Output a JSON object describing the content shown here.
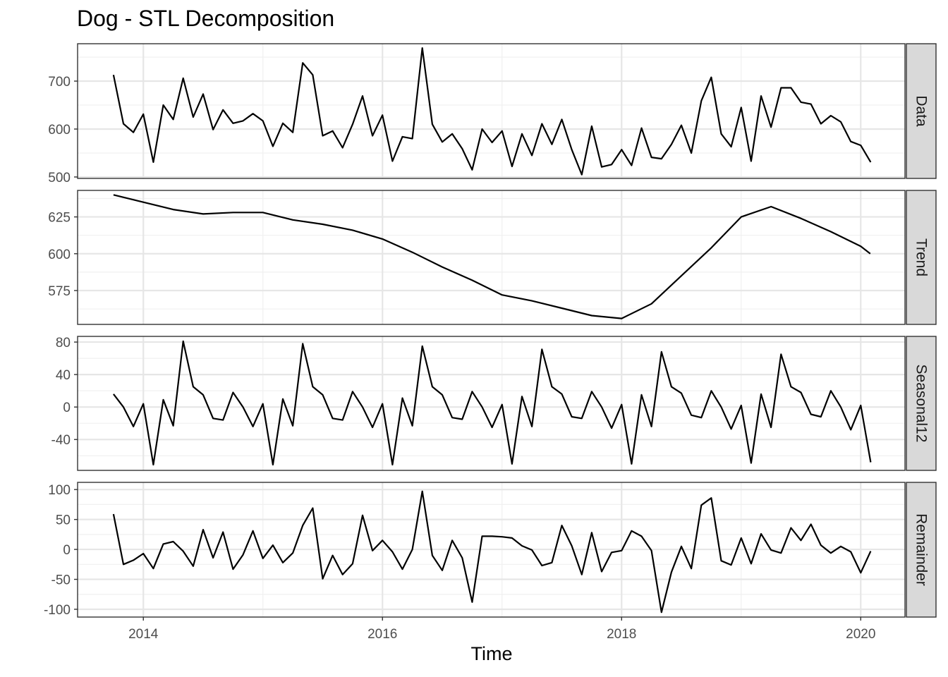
{
  "chart_data": {
    "type": "line",
    "title": "Dog - STL Decomposition",
    "xlabel": "Time",
    "x_ticks": [
      "2014",
      "2016",
      "2018",
      "2020"
    ],
    "x_tick_values": [
      2014,
      2016,
      2018,
      2020
    ],
    "x_start": 2013.75,
    "x_step": 0.0833333,
    "xlim": [
      2013.45,
      2020.37
    ],
    "grid": true,
    "facets": [
      {
        "name": "Data",
        "ylim": [
          497,
          778
        ],
        "y_ticks": [
          500,
          600,
          700
        ],
        "y_tick_labels": [
          "500",
          "600",
          "700"
        ],
        "values": [
          713,
          611,
          593,
          631,
          531,
          650,
          620,
          706,
          625,
          673,
          599,
          640,
          612,
          617,
          632,
          617,
          564,
          612,
          593,
          738,
          713,
          586,
          596,
          561,
          610,
          669,
          586,
          629,
          533,
          584,
          580,
          769,
          610,
          573,
          590,
          559,
          515,
          600,
          572,
          596,
          522,
          590,
          545,
          611,
          568,
          620,
          557,
          505,
          606,
          521,
          526,
          557,
          524,
          602,
          541,
          538,
          568,
          608,
          550,
          659,
          708,
          590,
          563,
          645,
          533,
          669,
          604,
          686,
          686,
          656,
          652,
          611,
          628,
          615,
          574,
          566,
          531
        ]
      },
      {
        "name": "Trend",
        "ylim": [
          552,
          643
        ],
        "y_ticks": [
          575,
          600,
          625
        ],
        "y_tick_labels": [
          "575",
          "600",
          "625"
        ],
        "values": [
          640,
          635,
          630,
          627,
          628,
          628,
          623,
          620,
          616,
          610,
          601,
          591,
          582,
          572,
          568,
          563,
          558,
          556,
          566,
          585,
          604,
          625,
          632,
          624,
          615,
          605,
          600
        ],
        "x": [
          2013.75,
          2014.0,
          2014.25,
          2014.5,
          2014.75,
          2015.0,
          2015.25,
          2015.5,
          2015.75,
          2016.0,
          2016.25,
          2016.5,
          2016.75,
          2017.0,
          2017.25,
          2017.5,
          2017.75,
          2018.0,
          2018.25,
          2018.5,
          2018.75,
          2019.0,
          2019.25,
          2019.5,
          2019.75,
          2020.0,
          2020.08
        ]
      },
      {
        "name": "Seasonal12",
        "ylim": [
          -78,
          87
        ],
        "y_ticks": [
          -40,
          0,
          40,
          80
        ],
        "y_tick_labels": [
          "-40",
          "0",
          "40",
          "80"
        ],
        "values": [
          16,
          0,
          -24,
          4,
          -71,
          9,
          -23,
          81,
          25,
          15,
          -14,
          -16,
          18,
          0,
          -24,
          4,
          -71,
          10,
          -23,
          78,
          25,
          15,
          -14,
          -16,
          19,
          0,
          -25,
          4,
          -71,
          11,
          -23,
          75,
          25,
          15,
          -13,
          -15,
          19,
          0,
          -25,
          3,
          -70,
          13,
          -24,
          71,
          25,
          16,
          -12,
          -14,
          19,
          0,
          -26,
          3,
          -70,
          15,
          -24,
          68,
          25,
          17,
          -10,
          -13,
          20,
          0,
          -27,
          2,
          -69,
          16,
          -25,
          65,
          25,
          18,
          -9,
          -12,
          20,
          0,
          -28,
          2,
          -68
        ]
      },
      {
        "name": "Remainder",
        "ylim": [
          -113,
          112
        ],
        "y_ticks": [
          -100,
          -50,
          0,
          50,
          100
        ],
        "y_tick_labels": [
          "-100",
          "-50",
          "0",
          "50",
          "100"
        ],
        "values": [
          59,
          -25,
          -18,
          -7,
          -32,
          9,
          13,
          -3,
          -28,
          33,
          -14,
          29,
          -33,
          -9,
          31,
          -15,
          7,
          -22,
          -6,
          40,
          69,
          -49,
          -10,
          -42,
          -24,
          57,
          -2,
          15,
          -4,
          -33,
          0,
          97,
          -10,
          -35,
          15,
          -14,
          -88,
          22,
          22,
          21,
          19,
          6,
          -1,
          -27,
          -22,
          40,
          6,
          -42,
          28,
          -37,
          -5,
          -2,
          31,
          22,
          -2,
          -105,
          -38,
          5,
          -32,
          74,
          86,
          -19,
          -26,
          19,
          -24,
          26,
          -1,
          -6,
          36,
          15,
          42,
          7,
          -6,
          5,
          -4,
          -39,
          -3
        ]
      }
    ]
  }
}
